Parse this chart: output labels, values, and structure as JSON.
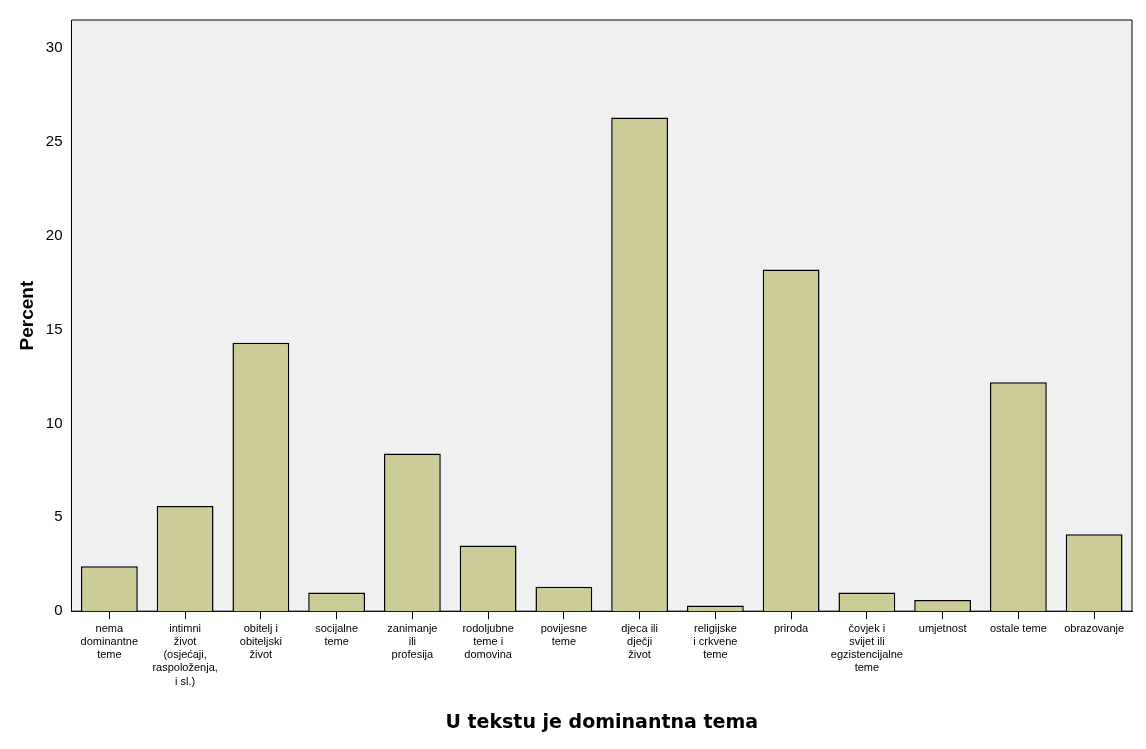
{
  "chart_data": {
    "type": "bar",
    "xlabel": "U tekstu je dominantna tema",
    "ylabel": "Percent",
    "categories": [
      "nema dominantne teme",
      "intimni život (osjećaji, raspoloženja, i sl.)",
      "obitelj i obiteljski život",
      "socijalne teme",
      "zanimanje ili profesija",
      "rodoljubne teme i domovina",
      "povijesne teme",
      "djeca ili dječji život",
      "religijske i crkvene teme",
      "priroda",
      "čovjek i svijet ili egzistencijalne teme",
      "umjetnost",
      "ostale teme",
      "obrazovanje"
    ],
    "values": [
      2.4,
      5.6,
      14.3,
      1.0,
      8.4,
      3.5,
      1.3,
      26.3,
      0.3,
      18.2,
      1.0,
      0.6,
      12.2,
      4.1
    ],
    "color": "#cccc99",
    "ylim": [
      0,
      31.5
    ],
    "yticks": [
      0,
      5,
      10,
      15,
      20,
      25,
      30
    ],
    "grid": false,
    "legend": false
  }
}
